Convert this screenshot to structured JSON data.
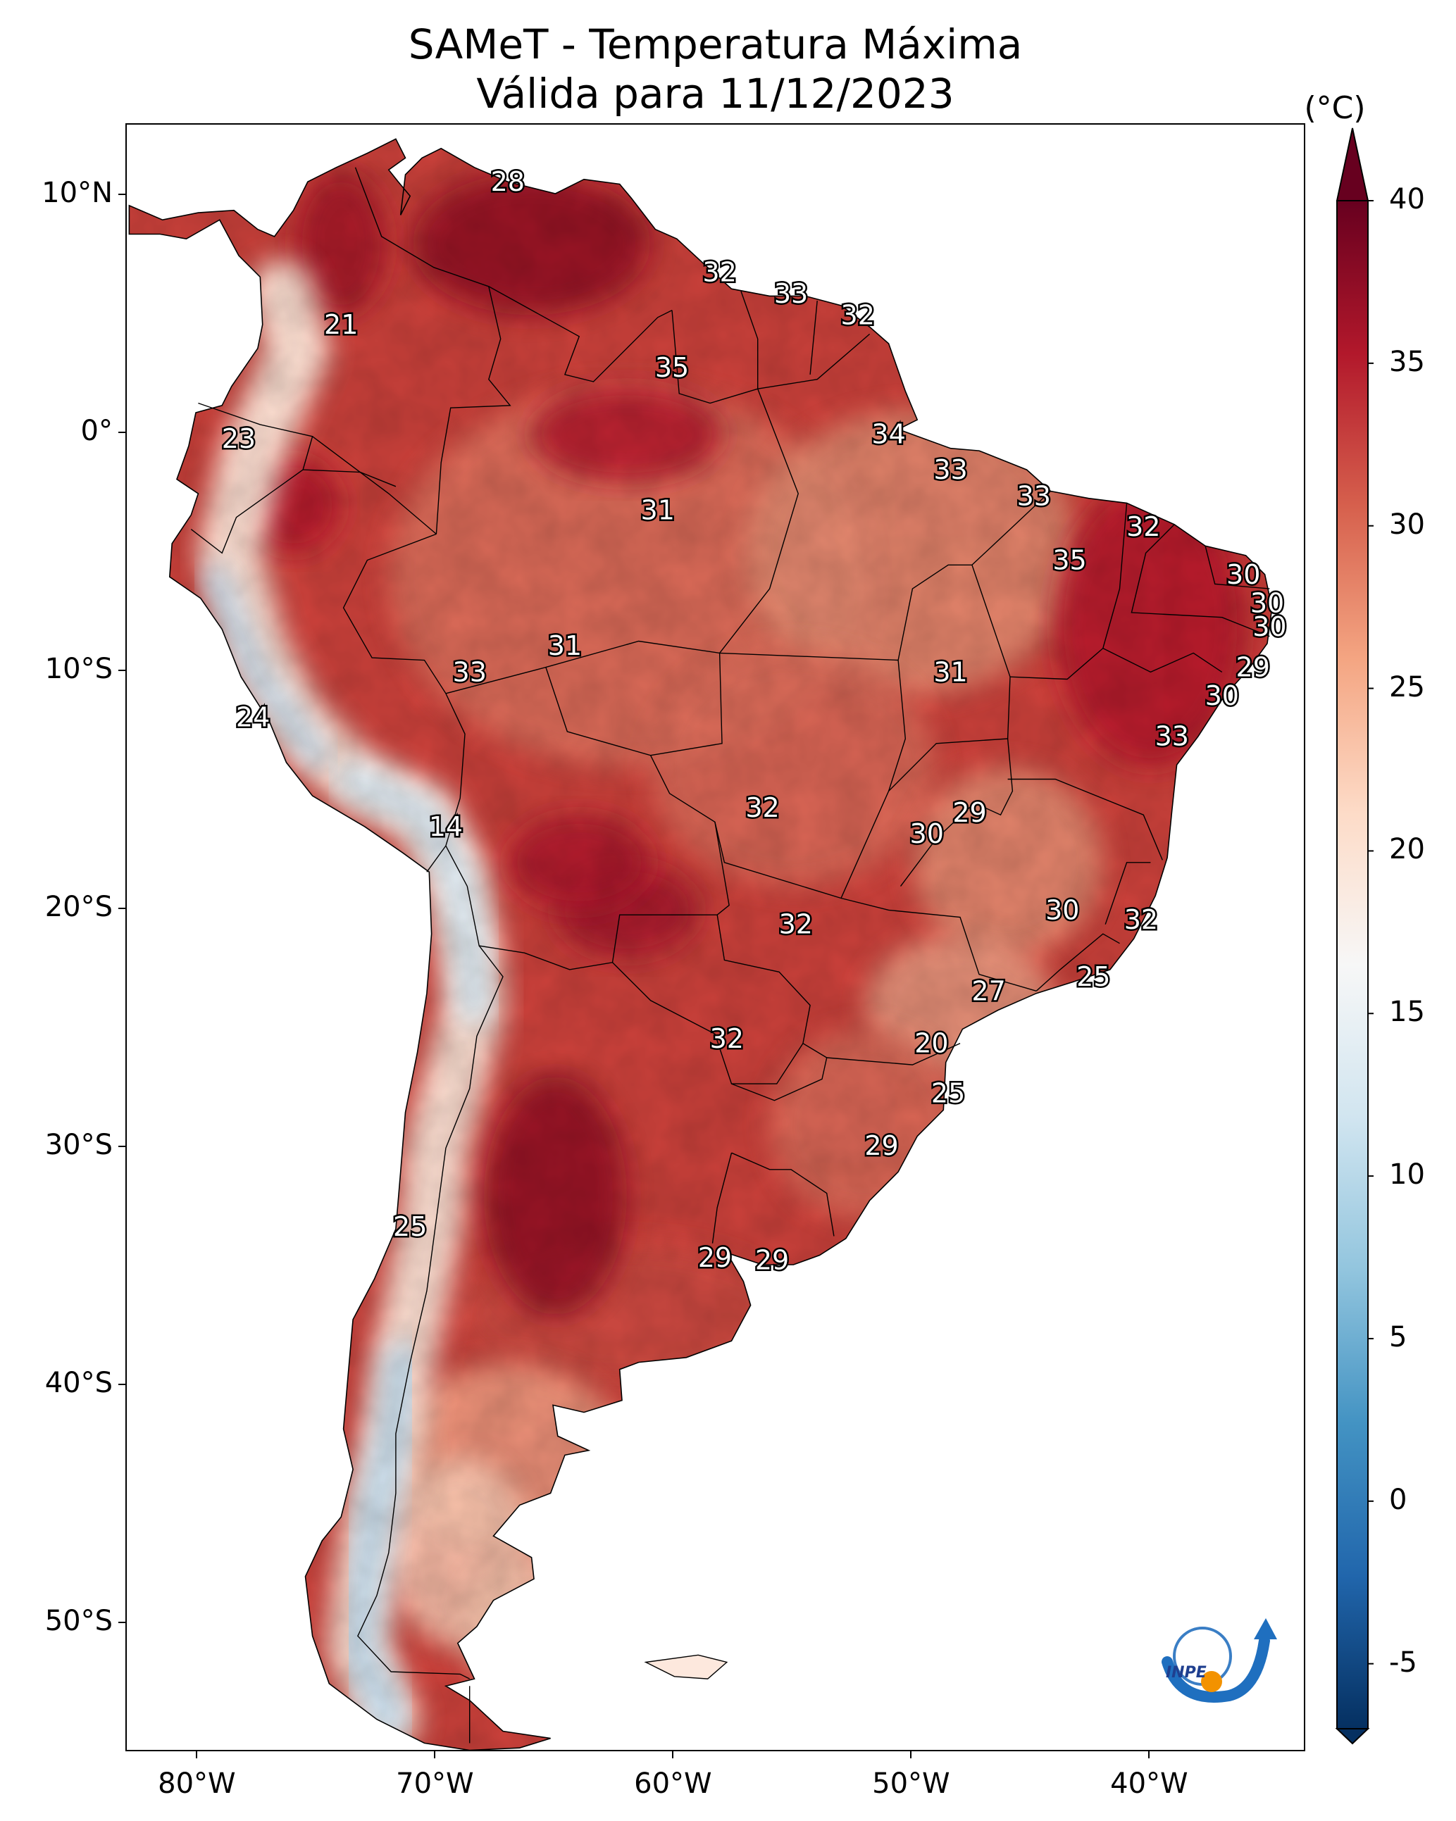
{
  "title_line1": "SAMeT - Temperatura Máxima",
  "title_line2": "Válida para 11/12/2023",
  "unit": "(°C)",
  "lat_ticks": [
    "10°N",
    "0°",
    "10°S",
    "20°S",
    "30°S",
    "40°S",
    "50°S"
  ],
  "lon_ticks": [
    "80°W",
    "70°W",
    "60°W",
    "50°W",
    "40°W"
  ],
  "colorbar": {
    "ticks": [
      "40",
      "35",
      "30",
      "25",
      "20",
      "15",
      "10",
      "5",
      "0",
      "-5"
    ],
    "min": -7,
    "max": 40,
    "extend": "both",
    "colors": [
      "#053061",
      "#2166ac",
      "#4393c3",
      "#92c5de",
      "#d1e5f0",
      "#f7f7f7",
      "#fddbc7",
      "#f4a582",
      "#d6604d",
      "#b2182b",
      "#67001f"
    ]
  },
  "logo_text": "INPE",
  "temperature_labels": [
    {
      "v": "28",
      "lon": -67.0,
      "lat": 10.6
    },
    {
      "v": "21",
      "lon": -74.0,
      "lat": 4.6
    },
    {
      "v": "32",
      "lon": -58.1,
      "lat": 6.8
    },
    {
      "v": "33",
      "lon": -55.1,
      "lat": 5.9
    },
    {
      "v": "32",
      "lon": -52.3,
      "lat": 5.0
    },
    {
      "v": "35",
      "lon": -60.1,
      "lat": 2.8
    },
    {
      "v": "23",
      "lon": -78.3,
      "lat": -0.2
    },
    {
      "v": "34",
      "lon": -51.0,
      "lat": 0.0
    },
    {
      "v": "33",
      "lon": -48.4,
      "lat": -1.5
    },
    {
      "v": "33",
      "lon": -44.9,
      "lat": -2.6
    },
    {
      "v": "31",
      "lon": -60.7,
      "lat": -3.2
    },
    {
      "v": "32",
      "lon": -40.3,
      "lat": -3.9
    },
    {
      "v": "35",
      "lon": -43.4,
      "lat": -5.3
    },
    {
      "v": "30",
      "lon": -36.1,
      "lat": -5.9
    },
    {
      "v": "30",
      "lon": -35.1,
      "lat": -7.1
    },
    {
      "v": "30",
      "lon": -35.0,
      "lat": -8.1
    },
    {
      "v": "31",
      "lon": -64.6,
      "lat": -8.9
    },
    {
      "v": "33",
      "lon": -68.6,
      "lat": -10.0
    },
    {
      "v": "31",
      "lon": -48.4,
      "lat": -10.0
    },
    {
      "v": "29",
      "lon": -35.7,
      "lat": -9.8
    },
    {
      "v": "30",
      "lon": -37.0,
      "lat": -11.0
    },
    {
      "v": "24",
      "lon": -77.7,
      "lat": -11.9
    },
    {
      "v": "33",
      "lon": -39.1,
      "lat": -12.7
    },
    {
      "v": "32",
      "lon": -56.3,
      "lat": -15.7
    },
    {
      "v": "29",
      "lon": -47.6,
      "lat": -15.9
    },
    {
      "v": "14",
      "lon": -69.6,
      "lat": -16.5
    },
    {
      "v": "30",
      "lon": -49.4,
      "lat": -16.8
    },
    {
      "v": "30",
      "lon": -43.7,
      "lat": -20.0
    },
    {
      "v": "32",
      "lon": -40.4,
      "lat": -20.4
    },
    {
      "v": "32",
      "lon": -54.9,
      "lat": -20.6
    },
    {
      "v": "25",
      "lon": -42.4,
      "lat": -22.8
    },
    {
      "v": "27",
      "lon": -46.8,
      "lat": -23.4
    },
    {
      "v": "32",
      "lon": -57.8,
      "lat": -25.4
    },
    {
      "v": "20",
      "lon": -49.2,
      "lat": -25.6
    },
    {
      "v": "25",
      "lon": -48.5,
      "lat": -27.7
    },
    {
      "v": "29",
      "lon": -51.3,
      "lat": -29.9
    },
    {
      "v": "25",
      "lon": -71.1,
      "lat": -33.3
    },
    {
      "v": "29",
      "lon": -58.3,
      "lat": -34.6
    },
    {
      "v": "29",
      "lon": -55.9,
      "lat": -34.7
    }
  ]
}
